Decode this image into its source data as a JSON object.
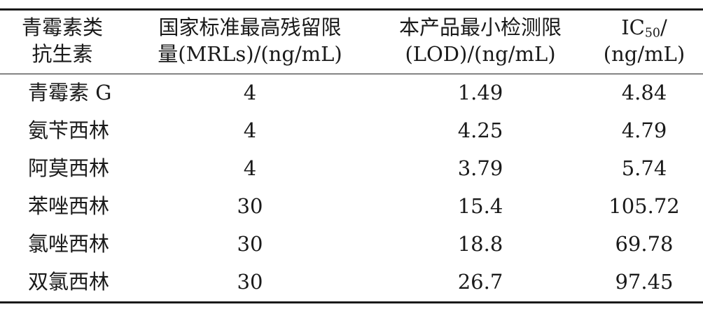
{
  "table": {
    "headers": [
      {
        "line1": "青霉素类",
        "line2": "抗生素"
      },
      {
        "line1": "国家标准最高残留限",
        "line2": "量(MRLs)/(ng/mL)"
      },
      {
        "line1": "本产品最小检测限",
        "line2": "(LOD)/(ng/mL)"
      },
      {
        "line1_prefix": "IC",
        "line1_sub": "50",
        "line1_suffix": "/",
        "line2": "(ng/mL)"
      }
    ],
    "rows": [
      {
        "name": "青霉素 G",
        "mrl": "4",
        "lod": "1.49",
        "ic50": "4.84"
      },
      {
        "name": "氨苄西林",
        "mrl": "4",
        "lod": "4.25",
        "ic50": "4.79"
      },
      {
        "name": "阿莫西林",
        "mrl": "4",
        "lod": "3.79",
        "ic50": "5.74"
      },
      {
        "name": "苯唑西林",
        "mrl": "30",
        "lod": "15.4",
        "ic50": "105.72"
      },
      {
        "name": "氯唑西林",
        "mrl": "30",
        "lod": "18.8",
        "ic50": "69.78"
      },
      {
        "name": "双氯西林",
        "mrl": "30",
        "lod": "26.7",
        "ic50": "97.45"
      }
    ]
  }
}
